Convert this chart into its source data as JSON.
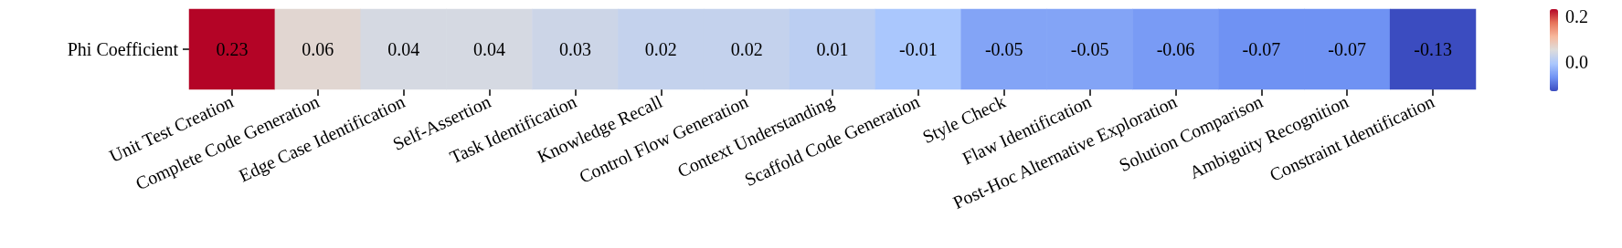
{
  "chart_data": {
    "type": "heatmap",
    "categories": [
      "Unit Test Creation",
      "Complete Code Generation",
      "Edge Case Identification",
      "Self-Assertion",
      "Task Identification",
      "Knowledge Recall",
      "Control Flow Generation",
      "Context Understanding",
      "Scaffold Code Generation",
      "Style Check",
      "Flaw Identification",
      "Post-Hoc Alternative Exploration",
      "Solution Comparison",
      "Ambiguity Recognition",
      "Constraint Identification"
    ],
    "y_categories": [
      "Phi Coefficient"
    ],
    "cells": [
      [
        0.23,
        0.06,
        0.04,
        0.04,
        0.03,
        0.02,
        0.02,
        0.01,
        -0.01,
        -0.05,
        -0.05,
        -0.06,
        -0.07,
        -0.07,
        -0.13
      ]
    ],
    "data_labels": true,
    "clim": [
      -0.13,
      0.23
    ],
    "cticks": [
      {
        "value": 0,
        "label": "0.0"
      },
      {
        "value": 0.2,
        "label": "0.2"
      }
    ]
  }
}
